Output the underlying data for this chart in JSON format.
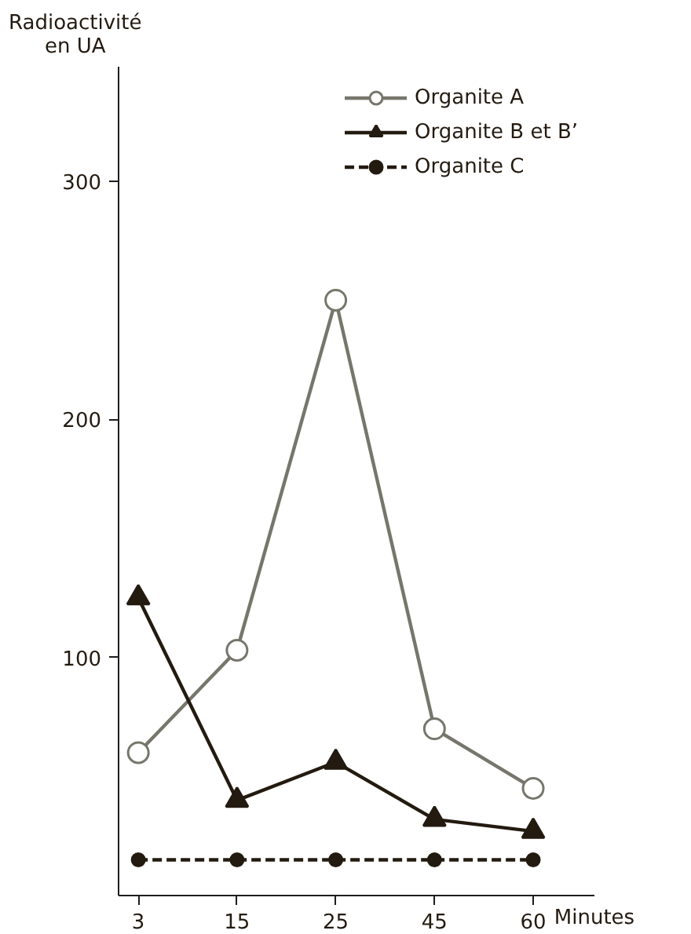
{
  "chart_data": {
    "type": "line",
    "ylabel": "Radioactivité\nen UA",
    "xlabel": "Minutes",
    "categories": [
      "3",
      "15",
      "25",
      "45",
      "60"
    ],
    "ylim": [
      0,
      348
    ],
    "yticks": [
      100,
      200,
      300
    ],
    "grid": false,
    "legend": "top right",
    "series": [
      {
        "name": "Organite A",
        "color": "#77766c",
        "values": [
          60,
          103,
          250,
          70,
          45
        ],
        "marker": "circle",
        "line_style": "solid"
      },
      {
        "name": "Organite B et B’",
        "color": "#231a10",
        "values": [
          125,
          40,
          56,
          32,
          27
        ],
        "marker": "triangle",
        "line_style": "solid"
      },
      {
        "name": "Organite C",
        "color": "#231a10",
        "values": [
          15,
          15,
          15,
          15,
          15
        ],
        "marker": "circle",
        "line_style": "dashed"
      }
    ]
  }
}
